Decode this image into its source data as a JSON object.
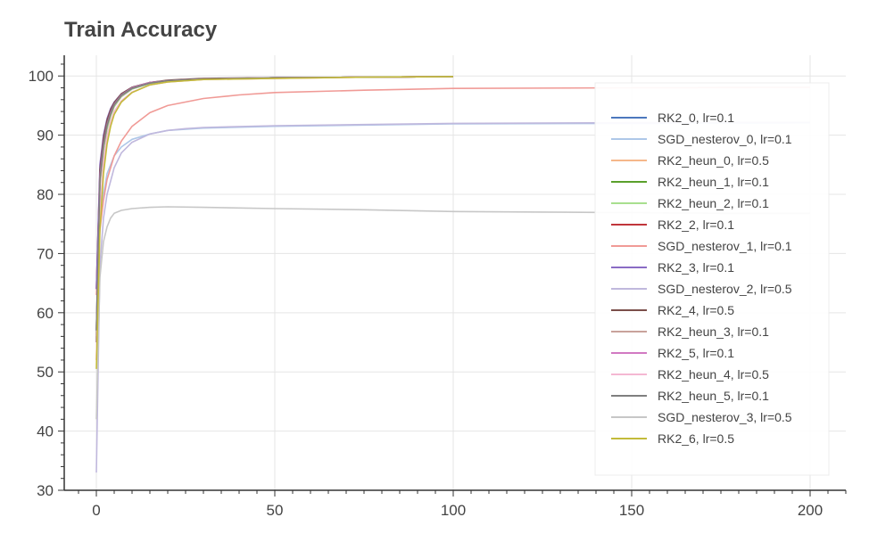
{
  "chart_data": {
    "type": "line",
    "title": "Train Accuracy",
    "xlabel": "",
    "ylabel": "",
    "xlim": [
      -9,
      210
    ],
    "ylim": [
      30,
      103.5
    ],
    "xticks": [
      0,
      50,
      100,
      150,
      200
    ],
    "yticks": [
      30,
      40,
      50,
      60,
      70,
      80,
      90,
      100
    ],
    "grid": true,
    "legend_position": "right",
    "series": [
      {
        "name": "RK2_0, lr=0.1",
        "color": "#4c78bd",
        "x": [
          0,
          1,
          2,
          3,
          4,
          5,
          7,
          10,
          15,
          20,
          30,
          50,
          75,
          100
        ],
        "y": [
          56,
          82,
          88,
          91.5,
          93.5,
          95,
          96.5,
          97.8,
          98.8,
          99.2,
          99.5,
          99.7,
          99.8,
          99.9
        ]
      },
      {
        "name": "SGD_nesterov_0, lr=0.1",
        "color": "#aec7e8",
        "x": [
          0,
          1,
          2,
          3,
          5,
          7,
          10,
          15,
          20,
          30,
          50,
          75,
          100,
          150,
          200
        ],
        "y": [
          56,
          75,
          80,
          83.5,
          86.5,
          88,
          89.3,
          90.2,
          90.8,
          91.2,
          91.5,
          91.7,
          91.9,
          92,
          92.1
        ]
      },
      {
        "name": "RK2_heun_0, lr=0.5",
        "color": "#f5b78a",
        "x": [
          0,
          1,
          2,
          3,
          4,
          5,
          7,
          10,
          15,
          20,
          30,
          50,
          75,
          100
        ],
        "y": [
          52,
          76,
          85,
          89.5,
          92,
          93.8,
          95.6,
          97.2,
          98.5,
          99,
          99.4,
          99.6,
          99.8,
          99.9
        ]
      },
      {
        "name": "RK2_heun_1, lr=0.1",
        "color": "#5aa02c",
        "x": [
          0,
          1,
          2,
          3,
          4,
          5,
          7,
          10,
          15,
          20,
          30,
          50,
          75,
          100
        ],
        "y": [
          57,
          82,
          88,
          91.5,
          93.5,
          95,
          96.6,
          97.9,
          98.8,
          99.2,
          99.5,
          99.7,
          99.8,
          99.9
        ]
      },
      {
        "name": "RK2_heun_2, lr=0.1",
        "color": "#a8df8e",
        "x": [
          0,
          1,
          2,
          3,
          4,
          5,
          7,
          10,
          15,
          20,
          30,
          50,
          75,
          100
        ],
        "y": [
          56,
          81.5,
          87.5,
          91,
          93.2,
          94.8,
          96.5,
          97.8,
          98.7,
          99.1,
          99.5,
          99.7,
          99.8,
          99.9
        ]
      },
      {
        "name": "RK2_2, lr=0.1",
        "color": "#c0353b",
        "x": [
          0,
          1,
          2,
          3,
          4,
          5,
          7,
          10,
          15,
          20,
          30,
          50,
          75,
          100
        ],
        "y": [
          64,
          84,
          89,
          92,
          94,
          95.3,
          96.8,
          98,
          98.9,
          99.2,
          99.5,
          99.7,
          99.8,
          99.9
        ]
      },
      {
        "name": "SGD_nesterov_1, lr=0.1",
        "color": "#f09a96",
        "x": [
          0,
          1,
          2,
          3,
          5,
          7,
          10,
          15,
          20,
          30,
          40,
          50,
          75,
          100,
          150,
          200
        ],
        "y": [
          63,
          74,
          79,
          82.5,
          86.5,
          89,
          91.5,
          93.8,
          95,
          96.2,
          96.8,
          97.2,
          97.6,
          97.9,
          98,
          98.1
        ]
      },
      {
        "name": "RK2_3, lr=0.1",
        "color": "#8a6cc4",
        "x": [
          0,
          1,
          2,
          3,
          4,
          5,
          7,
          10,
          15,
          20,
          30,
          50,
          75,
          100
        ],
        "y": [
          64,
          85,
          90,
          92.8,
          94.5,
          95.6,
          97,
          98.1,
          98.9,
          99.2,
          99.5,
          99.7,
          99.8,
          99.9
        ]
      },
      {
        "name": "SGD_nesterov_2, lr=0.5",
        "color": "#c0b8dd",
        "x": [
          0,
          1,
          2,
          3,
          5,
          7,
          10,
          15,
          20,
          25,
          30,
          50,
          75,
          100,
          150,
          200
        ],
        "y": [
          33,
          68,
          76,
          80,
          84.5,
          87,
          88.8,
          90.2,
          90.8,
          91.1,
          91.3,
          91.6,
          91.8,
          92,
          92.1,
          92.2
        ]
      },
      {
        "name": "RK2_4, lr=0.5",
        "color": "#7b4f4a",
        "x": [
          0,
          1,
          2,
          3,
          4,
          5,
          7,
          10,
          15,
          20,
          30,
          50,
          75,
          100
        ],
        "y": [
          55,
          84,
          89.5,
          92.5,
          94.3,
          95.5,
          97,
          98.1,
          98.9,
          99.3,
          99.6,
          99.7,
          99.8,
          99.9
        ]
      },
      {
        "name": "RK2_heun_3, lr=0.1",
        "color": "#c9a29b",
        "x": [
          0,
          1,
          2,
          3,
          4,
          5,
          7,
          10,
          15,
          20,
          30,
          50,
          75,
          100
        ],
        "y": [
          56,
          82,
          88,
          91.5,
          93.5,
          95,
          96.6,
          97.9,
          98.8,
          99.2,
          99.5,
          99.7,
          99.8,
          99.9
        ]
      },
      {
        "name": "RK2_5, lr=0.1",
        "color": "#d179c2",
        "x": [
          0,
          1,
          2,
          3,
          4,
          5,
          7,
          10,
          15,
          20,
          30,
          50,
          75,
          100
        ],
        "y": [
          57,
          83,
          88.5,
          91.8,
          93.8,
          95.2,
          96.8,
          98,
          98.9,
          99.2,
          99.5,
          99.7,
          99.8,
          99.9
        ]
      },
      {
        "name": "RK2_heun_4, lr=0.5",
        "color": "#f4b8d2",
        "x": [
          0,
          1,
          2,
          3,
          4,
          5,
          7,
          10,
          15,
          20,
          30,
          50,
          75,
          100
        ],
        "y": [
          52,
          77,
          85.5,
          89.8,
          92.2,
          94,
          95.8,
          97.3,
          98.5,
          99,
          99.4,
          99.6,
          99.8,
          99.9
        ]
      },
      {
        "name": "RK2_heun_5, lr=0.1",
        "color": "#7f7f7f",
        "x": [
          0,
          1,
          2,
          3,
          4,
          5,
          7,
          10,
          15,
          20,
          30,
          50,
          75,
          100
        ],
        "y": [
          57,
          82.5,
          88.2,
          91.6,
          93.6,
          95.1,
          96.7,
          97.9,
          98.8,
          99.2,
          99.5,
          99.7,
          99.8,
          99.9
        ]
      },
      {
        "name": "SGD_nesterov_3, lr=0.5",
        "color": "#c7c7c7",
        "x": [
          0,
          1,
          2,
          3,
          4,
          5,
          7,
          10,
          15,
          20,
          30,
          40,
          50,
          75,
          100,
          125,
          150,
          175,
          200
        ],
        "y": [
          42,
          66,
          72,
          74.5,
          76,
          76.8,
          77.3,
          77.6,
          77.8,
          77.9,
          77.8,
          77.7,
          77.6,
          77.4,
          77.1,
          77,
          76.9,
          76.8,
          76.8
        ]
      },
      {
        "name": "RK2_6, lr=0.5",
        "color": "#c3bb3a",
        "x": [
          0,
          1,
          2,
          3,
          4,
          5,
          7,
          10,
          15,
          20,
          30,
          50,
          75,
          100
        ],
        "y": [
          50.5,
          74,
          83.5,
          88.5,
          91.5,
          93.5,
          95.6,
          97.2,
          98.5,
          99,
          99.4,
          99.6,
          99.8,
          99.9
        ]
      }
    ]
  }
}
